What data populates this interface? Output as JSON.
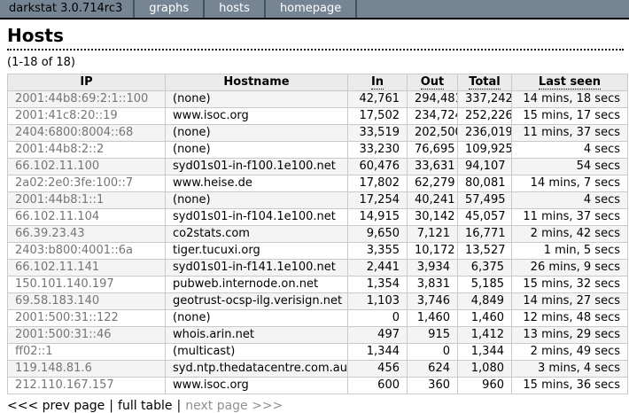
{
  "menu": {
    "title": "darkstat 3.0.714rc3",
    "items": [
      {
        "label": "graphs"
      },
      {
        "label": "hosts"
      },
      {
        "label": "homepage"
      }
    ]
  },
  "page": {
    "heading": "Hosts",
    "range_label": "(1-18 of 18)"
  },
  "table": {
    "columns": [
      {
        "label": "IP",
        "sortable": false
      },
      {
        "label": "Hostname",
        "sortable": false
      },
      {
        "label": "In",
        "sortable": true
      },
      {
        "label": "Out",
        "sortable": true
      },
      {
        "label": "Total",
        "sortable": true
      },
      {
        "label": "Last seen",
        "sortable": true
      }
    ],
    "rows": [
      [
        "2001:44b8:69:2:1::100",
        "(none)",
        "42,761",
        "294,481",
        "337,242",
        "14 mins, 18 secs"
      ],
      [
        "2001:41c8:20::19",
        "www.isoc.org",
        "17,502",
        "234,724",
        "252,226",
        "15 mins, 17 secs"
      ],
      [
        "2404:6800:8004::68",
        "(none)",
        "33,519",
        "202,500",
        "236,019",
        "11 mins, 37 secs"
      ],
      [
        "2001:44b8:2::2",
        "(none)",
        "33,230",
        "76,695",
        "109,925",
        "4 secs"
      ],
      [
        "66.102.11.100",
        "syd01s01-in-f100.1e100.net",
        "60,476",
        "33,631",
        "94,107",
        "54 secs"
      ],
      [
        "2a02:2e0:3fe:100::7",
        "www.heise.de",
        "17,802",
        "62,279",
        "80,081",
        "14 mins, 7 secs"
      ],
      [
        "2001:44b8:1::1",
        "(none)",
        "17,254",
        "40,241",
        "57,495",
        "4 secs"
      ],
      [
        "66.102.11.104",
        "syd01s01-in-f104.1e100.net",
        "14,915",
        "30,142",
        "45,057",
        "11 mins, 37 secs"
      ],
      [
        "66.39.23.43",
        "co2stats.com",
        "9,650",
        "7,121",
        "16,771",
        "2 mins, 42 secs"
      ],
      [
        "2403:b800:4001::6a",
        "tiger.tucuxi.org",
        "3,355",
        "10,172",
        "13,527",
        "1 min, 5 secs"
      ],
      [
        "66.102.11.141",
        "syd01s01-in-f141.1e100.net",
        "2,441",
        "3,934",
        "6,375",
        "26 mins, 9 secs"
      ],
      [
        "150.101.140.197",
        "pubweb.internode.on.net",
        "1,354",
        "3,831",
        "5,185",
        "15 mins, 32 secs"
      ],
      [
        "69.58.183.140",
        "geotrust-ocsp-ilg.verisign.net",
        "1,103",
        "3,746",
        "4,849",
        "14 mins, 27 secs"
      ],
      [
        "2001:500:31::122",
        "(none)",
        "0",
        "1,460",
        "1,460",
        "12 mins, 48 secs"
      ],
      [
        "2001:500:31::46",
        "whois.arin.net",
        "497",
        "915",
        "1,412",
        "13 mins, 29 secs"
      ],
      [
        "ff02::1",
        "(multicast)",
        "1,344",
        "0",
        "1,344",
        "2 mins, 49 secs"
      ],
      [
        "119.148.81.6",
        "syd.ntp.thedatacentre.com.au",
        "456",
        "624",
        "1,080",
        "3 mins, 4 secs"
      ],
      [
        "212.110.167.157",
        "www.isoc.org",
        "600",
        "360",
        "960",
        "15 mins, 36 secs"
      ]
    ],
    "cell_names": [
      "ip-cell",
      "hostname-cell",
      "in-cell",
      "out-cell",
      "total-cell",
      "last-seen-cell"
    ]
  },
  "pager": {
    "prev_label": "<<< prev page",
    "separator": "|",
    "full_label": "full table",
    "next_label": "next page >>>"
  },
  "colors": {
    "menubar_bg": "#768594",
    "menubar_separator": "#47525C",
    "menubar_text": "#FFFFFF",
    "menubar_title_text": "#000000",
    "table_header_bg": "#EBEBEB",
    "row_stripe_bg": "#F4F4F4",
    "table_border": "#C9C9C9",
    "ip_text": "#757575",
    "disabled_link": "#909090"
  }
}
